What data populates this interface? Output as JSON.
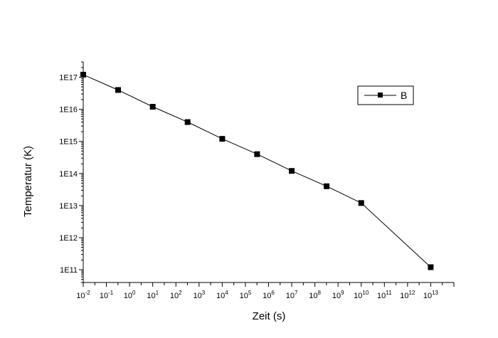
{
  "chart_data": {
    "type": "line",
    "xlabel": "Zeit (s)",
    "ylabel": "Temperatur (K)",
    "x_scale": "log",
    "y_scale": "log",
    "xlim": [
      "1e-2",
      "1e14"
    ],
    "ylim": [
      "4e10",
      "3e17"
    ],
    "x_ticks": [
      {
        "base": "10",
        "exp": "-2",
        "value": "1e-2"
      },
      {
        "base": "10",
        "exp": "-1",
        "value": "1e-1"
      },
      {
        "base": "10",
        "exp": "0",
        "value": "1e0"
      },
      {
        "base": "10",
        "exp": "1",
        "value": "1e1"
      },
      {
        "base": "10",
        "exp": "2",
        "value": "1e2"
      },
      {
        "base": "10",
        "exp": "3",
        "value": "1e3"
      },
      {
        "base": "10",
        "exp": "4",
        "value": "1e4"
      },
      {
        "base": "10",
        "exp": "5",
        "value": "1e5"
      },
      {
        "base": "10",
        "exp": "6",
        "value": "1e6"
      },
      {
        "base": "10",
        "exp": "7",
        "value": "1e7"
      },
      {
        "base": "10",
        "exp": "8",
        "value": "1e8"
      },
      {
        "base": "10",
        "exp": "9",
        "value": "1e9"
      },
      {
        "base": "10",
        "exp": "10",
        "value": "1e10"
      },
      {
        "base": "10",
        "exp": "11",
        "value": "1e11"
      },
      {
        "base": "10",
        "exp": "12",
        "value": "1e12"
      },
      {
        "base": "10",
        "exp": "13",
        "value": "1e13"
      }
    ],
    "y_ticks": [
      {
        "label": "1E11",
        "value": "1e11"
      },
      {
        "label": "1E12",
        "value": "1e12"
      },
      {
        "label": "1E13",
        "value": "1e13"
      },
      {
        "label": "1E14",
        "value": "1e14"
      },
      {
        "label": "1E15",
        "value": "1e15"
      },
      {
        "label": "1E16",
        "value": "1e16"
      },
      {
        "label": "1E17",
        "value": "1e17"
      }
    ],
    "series": [
      {
        "name": "B",
        "color": "#000000",
        "marker": "square",
        "x": [
          "1e-2",
          "3.2e-1",
          "1e1",
          "3.2e2",
          "1e4",
          "3.2e5",
          "1e7",
          "3.2e8",
          "1e10",
          "1e13"
        ],
        "y": [
          "1.2e17",
          "4e16",
          "1.2e16",
          "4e15",
          "1.2e15",
          "4e14",
          "1.2e14",
          "4e13",
          "1.2e13",
          "1.2e11"
        ]
      }
    ],
    "grid": false,
    "legend_position": "top-right"
  }
}
